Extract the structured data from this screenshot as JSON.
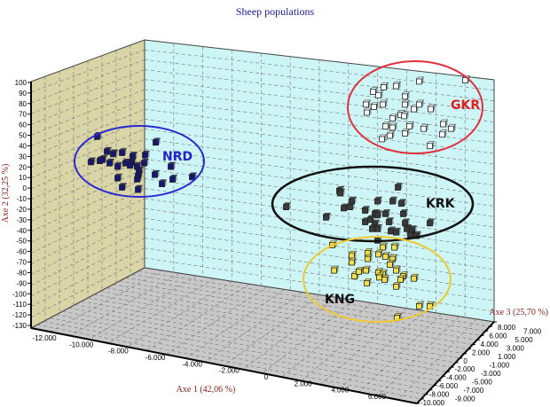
{
  "chart_data": {
    "type": "scatter",
    "dimensions": "3d",
    "title": "Sheep populations",
    "xlabel": "Axe 1 (42,06 %)",
    "ylabel": "Axe 2 (32,25 %)",
    "zlabel": "Axe 3 (25,70 %)",
    "xlim": [
      -12000,
      6000
    ],
    "ylim": [
      -130,
      100
    ],
    "zlim": [
      -10000,
      8000
    ],
    "x_ticks": [
      "-12.000",
      "-10.000",
      "-8.000",
      "-6.000",
      "-4.000",
      "-2.000",
      "0",
      "2.000",
      "4.000",
      "6.000"
    ],
    "y_ticks": [
      "100",
      "90",
      "80",
      "70",
      "60",
      "50",
      "40",
      "30",
      "20",
      "10",
      "0",
      "-10",
      "-20",
      "-30",
      "-40",
      "-50",
      "-60",
      "-70",
      "-80",
      "-90",
      "-100",
      "-110",
      "-120",
      "-130"
    ],
    "z_ticks": [
      "8.000",
      "7.000",
      "6.000",
      "5.000",
      "4.000",
      "3.000",
      "2.000",
      "1.000",
      "0",
      "-1.000",
      "-2.000",
      "-3.000",
      "-4.000",
      "-5.000",
      "-6.000",
      "-7.000",
      "-8.000",
      "-9.000",
      "-10.000"
    ],
    "grid": true,
    "series": [
      {
        "name": "NRD",
        "color": "#16167a",
        "label_color": "#2323c8",
        "ellipse_color": "#2a2ad0",
        "points": [
          [
            -11200,
            49
          ],
          [
            -8560,
            44
          ],
          [
            -10760,
            36
          ],
          [
            -10480,
            34
          ],
          [
            -10080,
            35
          ],
          [
            -9600,
            32
          ],
          [
            -9040,
            33
          ],
          [
            -11480,
            27
          ],
          [
            -11080,
            28
          ],
          [
            -10960,
            29
          ],
          [
            -10640,
            26
          ],
          [
            -10280,
            23
          ],
          [
            -9920,
            26
          ],
          [
            -9640,
            27
          ],
          [
            -9720,
            24
          ],
          [
            -9400,
            23
          ],
          [
            -9080,
            26
          ],
          [
            -9320,
            19
          ],
          [
            -7880,
            23
          ],
          [
            -8600,
            16
          ],
          [
            -10280,
            13
          ],
          [
            -9360,
            15
          ],
          [
            -9400,
            12
          ],
          [
            -6920,
            14
          ],
          [
            -7800,
            12
          ],
          [
            -8280,
            8
          ],
          [
            -10080,
            5
          ],
          [
            -9360,
            3
          ]
        ]
      },
      {
        "name": "GKR",
        "color": "#ffffff",
        "label_color": "#e02020",
        "ellipse_color": "#e03040",
        "points": [
          [
            3320,
            97
          ],
          [
            5400,
            98
          ],
          [
            1720,
            92
          ],
          [
            2280,
            93
          ],
          [
            1240,
            88
          ],
          [
            1480,
            85
          ],
          [
            2680,
            84
          ],
          [
            920,
            77
          ],
          [
            1280,
            75
          ],
          [
            1680,
            77
          ],
          [
            2680,
            77
          ],
          [
            3080,
            73
          ],
          [
            3320,
            77
          ],
          [
            3840,
            73
          ],
          [
            960,
            70
          ],
          [
            2120,
            65
          ],
          [
            2480,
            68
          ],
          [
            2640,
            67
          ],
          [
            1800,
            58
          ],
          [
            2120,
            57
          ],
          [
            2880,
            58
          ],
          [
            3520,
            56
          ],
          [
            4400,
            60
          ],
          [
            4760,
            56
          ],
          [
            1640,
            47
          ],
          [
            2000,
            50
          ],
          [
            2680,
            52
          ],
          [
            4360,
            51
          ],
          [
            3800,
            41
          ]
        ]
      },
      {
        "name": "KRK",
        "color": "#3a3a3a",
        "label_color": "#111111",
        "ellipse_color": "#111111",
        "points": [
          [
            2360,
            5
          ],
          [
            -280,
            2
          ],
          [
            -240,
            0
          ],
          [
            -2680,
            -12
          ],
          [
            -880,
            -21
          ],
          [
            280,
            -7
          ],
          [
            -80,
            -13
          ],
          [
            200,
            -12
          ],
          [
            1440,
            -7
          ],
          [
            2120,
            -7
          ],
          [
            2520,
            -9
          ],
          [
            880,
            -15
          ],
          [
            1320,
            -18
          ],
          [
            1440,
            -19
          ],
          [
            1800,
            -18
          ],
          [
            2600,
            -18
          ],
          [
            880,
            -25
          ],
          [
            1120,
            -23
          ],
          [
            1320,
            -27
          ],
          [
            1200,
            -31
          ],
          [
            1440,
            -31
          ],
          [
            1960,
            -25
          ],
          [
            2680,
            -26
          ],
          [
            3800,
            -26
          ],
          [
            2040,
            -33
          ],
          [
            2280,
            -34
          ],
          [
            2760,
            -31
          ],
          [
            3000,
            -32
          ],
          [
            2920,
            -36
          ],
          [
            3200,
            -37
          ],
          [
            1440,
            -41
          ]
        ]
      },
      {
        "name": "KNG",
        "color": "#f2e04a",
        "label_color": "#111111",
        "ellipse_color": "#f0c830",
        "points": [
          [
            -600,
            -45
          ],
          [
            1680,
            -47
          ],
          [
            2200,
            -47
          ],
          [
            280,
            -54
          ],
          [
            280,
            -60
          ],
          [
            1000,
            -52
          ],
          [
            1000,
            -57
          ],
          [
            1480,
            -53
          ],
          [
            1800,
            -55
          ],
          [
            2120,
            -57
          ],
          [
            2000,
            -62
          ],
          [
            -520,
            -67
          ],
          [
            400,
            -72
          ],
          [
            600,
            -68
          ],
          [
            920,
            -67
          ],
          [
            960,
            -78
          ],
          [
            1480,
            -69
          ],
          [
            1680,
            -70
          ],
          [
            1520,
            -73
          ],
          [
            1760,
            -75
          ],
          [
            2280,
            -67
          ],
          [
            2600,
            -72
          ],
          [
            2480,
            -75
          ],
          [
            3080,
            -74
          ],
          [
            2280,
            -81
          ],
          [
            3320,
            -98
          ],
          [
            3800,
            -98
          ],
          [
            2320,
            -108
          ]
        ]
      }
    ]
  }
}
